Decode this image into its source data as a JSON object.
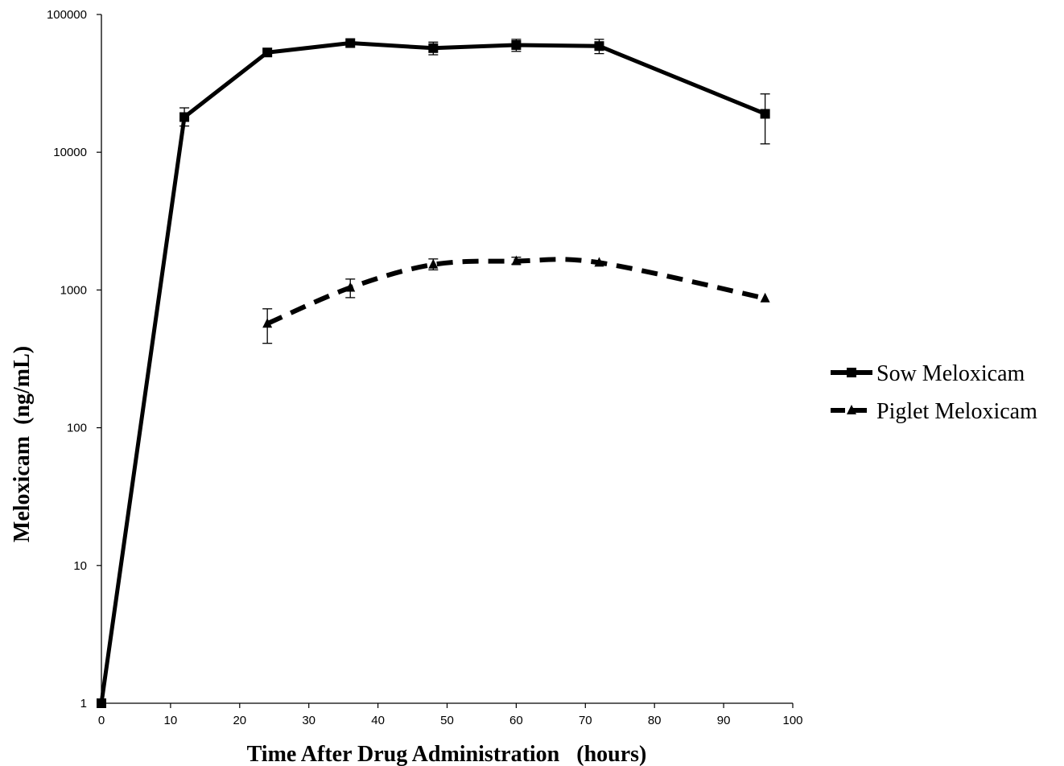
{
  "chart_data": {
    "type": "line",
    "title": "",
    "xlabel": "Time After Drug Administration   (hours)",
    "ylabel": "Meloxicam  (ng/mL)",
    "xlim": [
      0,
      100
    ],
    "ylim": [
      1,
      100000
    ],
    "yscale": "log",
    "grid": false,
    "legend_position": "right",
    "x_ticks": [
      "0",
      "10",
      "20",
      "30",
      "40",
      "50",
      "60",
      "70",
      "80",
      "90",
      "100"
    ],
    "y_ticks": [
      "1",
      "10",
      "100",
      "1000",
      "10000",
      "100000"
    ],
    "series": [
      {
        "name": "Sow Meloxicam",
        "line_style": "solid",
        "marker": "square",
        "color": "#000000",
        "x": [
          0,
          12,
          24,
          36,
          48,
          60,
          72,
          96
        ],
        "y": [
          1,
          18000,
          53000,
          62000,
          57000,
          60000,
          59000,
          19000
        ],
        "err_low": [
          null,
          15500,
          null,
          null,
          51000,
          54000,
          52000,
          11500
        ],
        "err_high": [
          null,
          21000,
          null,
          null,
          63000,
          66000,
          66000,
          26500
        ]
      },
      {
        "name": "Piglet Meloxicam",
        "line_style": "dashed",
        "marker": "triangle",
        "color": "#000000",
        "x": [
          24,
          36,
          48,
          60,
          72,
          96
        ],
        "y": [
          570,
          1040,
          1530,
          1620,
          1580,
          870
        ],
        "err_low": [
          410,
          880,
          1400,
          1540,
          null,
          null
        ],
        "err_high": [
          730,
          1200,
          1680,
          1730,
          null,
          null
        ]
      }
    ]
  }
}
